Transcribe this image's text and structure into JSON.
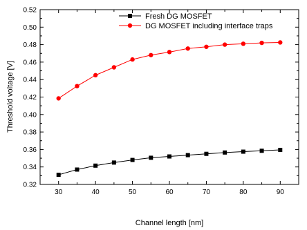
{
  "chart_data": {
    "type": "line",
    "title": "",
    "xlabel": "Channel length [nm]",
    "ylabel": "Threshold voltage [V]",
    "xlim": [
      25,
      95
    ],
    "ylim": [
      0.32,
      0.52
    ],
    "x_ticks": [
      30,
      40,
      50,
      60,
      70,
      80,
      90
    ],
    "x_tick_labels": [
      "30",
      "40",
      "50",
      "60",
      "70",
      "80",
      "90"
    ],
    "y_ticks": [
      0.32,
      0.34,
      0.36,
      0.38,
      0.4,
      0.42,
      0.44,
      0.46,
      0.48,
      0.5,
      0.52
    ],
    "y_tick_labels": [
      "0.32",
      "0.34",
      "0.36",
      "0.38",
      "0.40",
      "0.42",
      "0.44",
      "0.46",
      "0.48",
      "0.50",
      "0.52"
    ],
    "grid": false,
    "legend_position": "top-right",
    "x": [
      30,
      35,
      40,
      45,
      50,
      55,
      60,
      65,
      70,
      75,
      80,
      85,
      90
    ],
    "series": [
      {
        "name": "Fresh DG MOSFET",
        "color": "#000000",
        "marker": "square",
        "values": [
          0.331,
          0.337,
          0.3415,
          0.345,
          0.348,
          0.3505,
          0.352,
          0.3535,
          0.355,
          0.3565,
          0.3575,
          0.3585,
          0.3595
        ]
      },
      {
        "name": "DG MOSFET including interface traps",
        "color": "#ff0000",
        "marker": "circle",
        "values": [
          0.4185,
          0.4325,
          0.445,
          0.454,
          0.463,
          0.468,
          0.4715,
          0.4755,
          0.4775,
          0.48,
          0.481,
          0.482,
          0.4825
        ]
      }
    ]
  }
}
